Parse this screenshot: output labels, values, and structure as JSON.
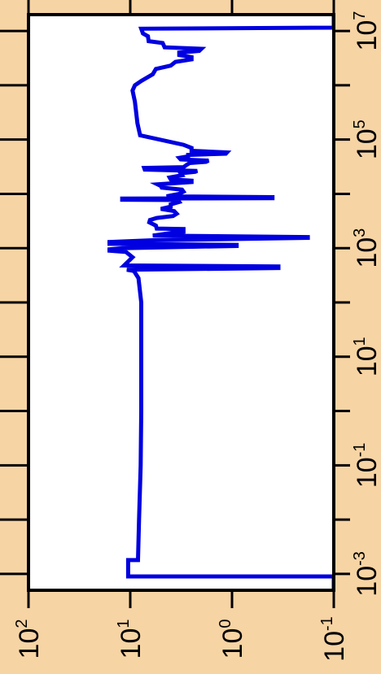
{
  "chart_data": {
    "type": "line",
    "orientation": "rotated-90",
    "title": "",
    "xlabel": "",
    "ylabel": "",
    "x_scale": "log",
    "y_scale": "log",
    "x_range": [
      0.0005,
      20000000
    ],
    "y_range": [
      0.1,
      100
    ],
    "x_tick_labels": [
      {
        "value": 0.001,
        "base": "10",
        "exp": "-3"
      },
      {
        "value": 0.1,
        "base": "10",
        "exp": "-1"
      },
      {
        "value": 10,
        "base": "10",
        "exp": "1"
      },
      {
        "value": 1000,
        "base": "10",
        "exp": "3"
      },
      {
        "value": 100000,
        "base": "10",
        "exp": "5"
      },
      {
        "value": 10000000,
        "base": "10",
        "exp": "7"
      }
    ],
    "y_tick_labels": [
      {
        "value": 100,
        "base": "10",
        "exp": "2"
      },
      {
        "value": 10,
        "base": "10",
        "exp": "1"
      },
      {
        "value": 1,
        "base": "10",
        "exp": "0"
      },
      {
        "value": 0.1,
        "base": "10",
        "exp": "-1"
      }
    ],
    "series": [
      {
        "color": "#0000e0",
        "points": [
          [
            0.0005,
            0.1
          ],
          [
            0.0009,
            0.1
          ],
          [
            0.0009,
            10.5
          ],
          [
            0.0018,
            10.5
          ],
          [
            0.0018,
            8.4
          ],
          [
            0.01,
            8.2
          ],
          [
            0.1,
            7.9
          ],
          [
            1,
            7.8
          ],
          [
            10,
            7.8
          ],
          [
            100,
            7.8
          ],
          [
            280,
            8.3
          ],
          [
            380,
            9.2
          ],
          [
            400,
            10.8
          ],
          [
            430,
            0.35
          ],
          [
            460,
            0.35
          ],
          [
            480,
            11.5
          ],
          [
            680,
            9.5
          ],
          [
            850,
            11
          ],
          [
            900,
            16
          ],
          [
            950,
            16
          ],
          [
            1000,
            12
          ],
          [
            1100,
            0.9
          ],
          [
            1150,
            0.9
          ],
          [
            1200,
            16
          ],
          [
            1300,
            16
          ],
          [
            1400,
            6
          ],
          [
            1550,
            0.18
          ],
          [
            1600,
            0.18
          ],
          [
            1700,
            6
          ],
          [
            1900,
            4
          ],
          [
            2000,
            3
          ],
          [
            2250,
            3
          ],
          [
            2300,
            5.5
          ],
          [
            2600,
            5.6
          ],
          [
            3000,
            6.5
          ],
          [
            3300,
            6.4
          ],
          [
            3600,
            5.5
          ],
          [
            3900,
            3.8
          ],
          [
            4300,
            3.5
          ],
          [
            4800,
            3.7
          ],
          [
            5300,
            5
          ],
          [
            5800,
            4
          ],
          [
            6400,
            4
          ],
          [
            7100,
            3.3
          ],
          [
            7700,
            3.4
          ],
          [
            7800,
            12
          ],
          [
            8200,
            12
          ],
          [
            8300,
            0.4
          ],
          [
            8700,
            0.4
          ],
          [
            9000,
            4.4
          ],
          [
            10000,
            3.3
          ],
          [
            11000,
            3.0
          ],
          [
            12000,
            3.1
          ],
          [
            13000,
            4.9
          ],
          [
            14000,
            5
          ],
          [
            15000,
            5.4
          ],
          [
            16500,
            2.5
          ],
          [
            17500,
            2.5
          ],
          [
            18500,
            4
          ],
          [
            20000,
            4.1
          ],
          [
            22000,
            3.1
          ],
          [
            24000,
            3.2
          ],
          [
            25500,
            2.3
          ],
          [
            26500,
            2.2
          ],
          [
            28000,
            7.2
          ],
          [
            30000,
            7.3
          ],
          [
            31000,
            3
          ],
          [
            34000,
            2.8
          ],
          [
            37000,
            2.6
          ],
          [
            39000,
            1.8
          ],
          [
            41000,
            1.7
          ],
          [
            43000,
            3.2
          ],
          [
            46000,
            3.3
          ],
          [
            49000,
            2.7
          ],
          [
            52000,
            2.7
          ],
          [
            55000,
            1.15
          ],
          [
            58000,
            1.12
          ],
          [
            62000,
            2.5
          ],
          [
            70000,
            2.5
          ],
          [
            80000,
            3
          ],
          [
            120000,
            8
          ],
          [
            200000,
            8.5
          ],
          [
            500000,
            9
          ],
          [
            800000,
            9.5
          ],
          [
            1000000,
            9
          ],
          [
            1200000,
            7.8
          ],
          [
            1600000,
            6
          ],
          [
            2000000,
            5.6
          ],
          [
            2300000,
            4
          ],
          [
            2700000,
            3.6
          ],
          [
            3000000,
            2.5
          ],
          [
            3300000,
            2.5
          ],
          [
            3600000,
            3.3
          ],
          [
            4000000,
            3.3
          ],
          [
            4300000,
            2.1
          ],
          [
            4700000,
            2.0
          ],
          [
            5000000,
            4.6
          ],
          [
            6000000,
            4.8
          ],
          [
            6500000,
            6.6
          ],
          [
            8000000,
            6.7
          ],
          [
            9000000,
            7.5
          ],
          [
            11000000,
            7.8
          ],
          [
            11500000,
            0.1
          ],
          [
            20000000,
            0.1
          ]
        ]
      }
    ]
  }
}
